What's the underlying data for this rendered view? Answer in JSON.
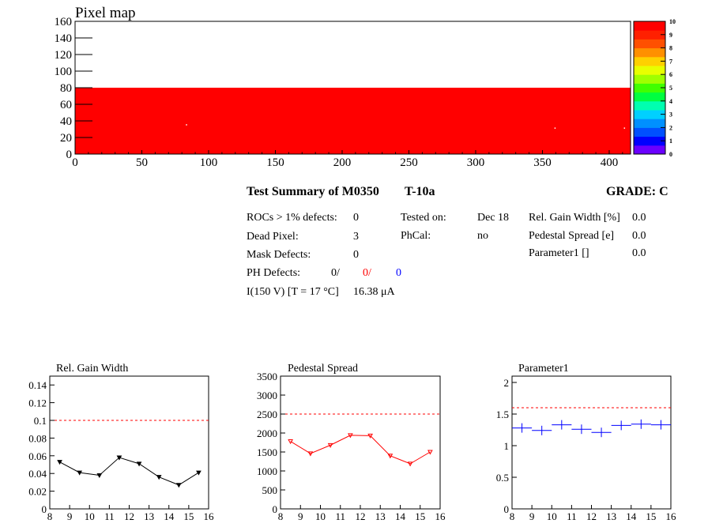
{
  "pixel_map": {
    "title": "Pixel map",
    "colors": {
      "fill": "#ff0000"
    }
  },
  "palette": {
    "labels": [
      "0",
      "1",
      "2",
      "3",
      "4",
      "5",
      "6",
      "7",
      "8",
      "9",
      "10"
    ],
    "colors": [
      "#6a00ff",
      "#0000ff",
      "#0050ff",
      "#0090ff",
      "#00d0ff",
      "#00ffb0",
      "#00ff40",
      "#40ff00",
      "#a0ff00",
      "#e8ff00",
      "#ffd000",
      "#ff9000",
      "#ff5000",
      "#ff2000",
      "#ff0000"
    ]
  },
  "summary": {
    "title": "Test Summary of M0350",
    "test": "T-10a",
    "grade": "GRADE:  C",
    "rocs_label": "ROCs > 1% defects:",
    "rocs_value": "0",
    "dead_label": "Dead Pixel:",
    "dead_value": "3",
    "mask_label": "Mask Defects:",
    "mask_value": "0",
    "ph_label": "PH Defects:",
    "ph_v1": "0/",
    "ph_v2": "0/",
    "ph_v3": "0",
    "current_label": "I(150 V) [T = 17 °C]",
    "current_value": "16.38 μA",
    "tested_label": "Tested on:",
    "tested_value": "Dec 18",
    "phcal_label": "PhCal:",
    "phcal_value": "no",
    "gain_label": "Rel. Gain Width [%]",
    "gain_value": "0.0",
    "ped_label": "Pedestal Spread [e]",
    "ped_value": "0.0",
    "par1_label": "Parameter1 []",
    "par1_value": "0.0",
    "colors": {
      "ph_v2": "#ff0000",
      "ph_v3": "#0000ff"
    }
  },
  "chart_data": [
    {
      "type": "heatmap",
      "title": "Pixel map",
      "xlim": [
        0,
        416
      ],
      "ylim": [
        0,
        160
      ],
      "xticks": [
        0,
        50,
        100,
        150,
        200,
        250,
        300,
        350,
        400
      ],
      "yticks": [
        0,
        20,
        40,
        60,
        80,
        100,
        120,
        140,
        160
      ],
      "filled_region": {
        "x": [
          0,
          416
        ],
        "y": [
          0,
          80
        ],
        "value": 10
      },
      "dead_pixels": [
        [
          83,
          36
        ],
        [
          359,
          32
        ],
        [
          411,
          32
        ]
      ],
      "zlim": [
        0,
        10
      ]
    },
    {
      "type": "line",
      "title": "Rel. Gain Width",
      "x": [
        8.5,
        9.5,
        10.5,
        11.5,
        12.5,
        13.5,
        14.5,
        15.5
      ],
      "values": [
        0.053,
        0.041,
        0.038,
        0.058,
        0.051,
        0.036,
        0.027,
        0.041
      ],
      "threshold": 0.1,
      "xlim": [
        8,
        16
      ],
      "ylim": [
        0,
        0.15
      ],
      "xticks": [
        "8",
        "9",
        "10",
        "11",
        "12",
        "13",
        "14",
        "15",
        "16"
      ],
      "yticks": [
        "0",
        "0.02",
        "0.04",
        "0.06",
        "0.08",
        "0.1",
        "0.12",
        "0.14"
      ],
      "color": "#000000"
    },
    {
      "type": "line",
      "title": "Pedestal Spread",
      "x": [
        8.5,
        9.5,
        10.5,
        11.5,
        12.5,
        13.5,
        14.5,
        15.5
      ],
      "values": [
        1780,
        1460,
        1680,
        1940,
        1930,
        1400,
        1190,
        1500
      ],
      "threshold": 2500,
      "xlim": [
        8,
        16
      ],
      "ylim": [
        0,
        3500
      ],
      "xticks": [
        "8",
        "9",
        "10",
        "11",
        "12",
        "13",
        "14",
        "15",
        "16"
      ],
      "yticks": [
        "0",
        "500",
        "1000",
        "1500",
        "2000",
        "2500",
        "3000",
        "3500"
      ],
      "color": "#ff0000"
    },
    {
      "type": "scatter",
      "title": "Parameter1",
      "x": [
        8.5,
        9.5,
        10.5,
        11.5,
        12.5,
        13.5,
        14.5,
        15.5
      ],
      "values": [
        1.28,
        1.24,
        1.33,
        1.26,
        1.21,
        1.32,
        1.34,
        1.33
      ],
      "threshold": 1.6,
      "xlim": [
        8,
        16
      ],
      "ylim": [
        0,
        2.1
      ],
      "xticks": [
        "8",
        "9",
        "10",
        "11",
        "12",
        "13",
        "14",
        "15",
        "16"
      ],
      "yticks": [
        "0",
        "0.5",
        "1",
        "1.5",
        "2"
      ],
      "color": "#0000ff"
    }
  ]
}
